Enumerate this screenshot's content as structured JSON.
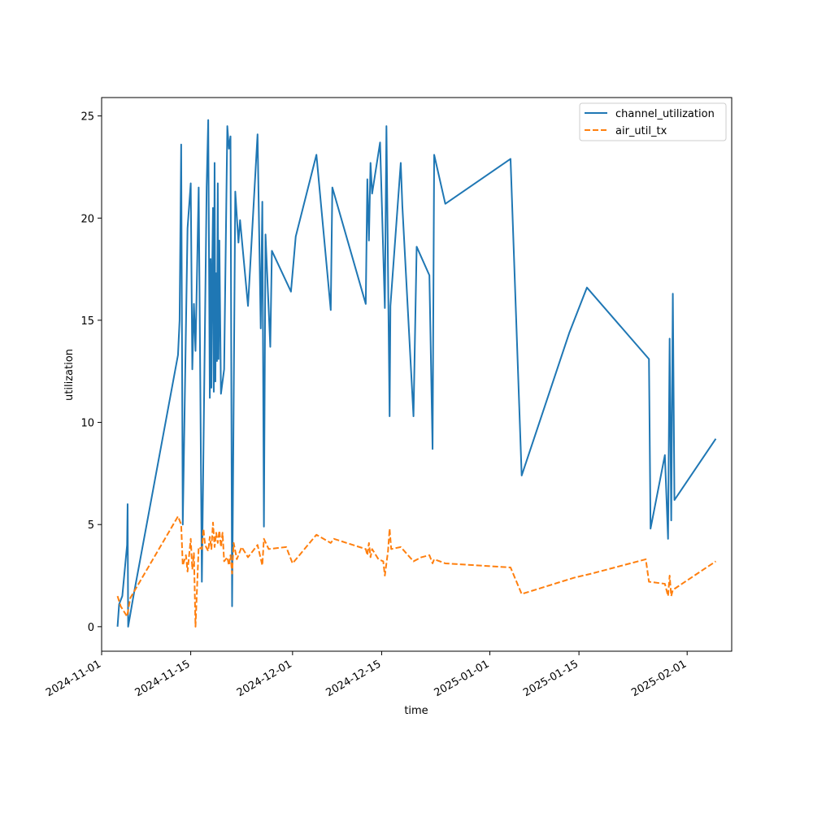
{
  "chart_data": {
    "type": "line",
    "xlabel": "time",
    "ylabel": "utilization",
    "ylim": [
      -1.2,
      25.9
    ],
    "xlim": [
      "2024-11-01",
      "2025-02-08"
    ],
    "x_ticks": [
      "2024-11-01",
      "2024-11-15",
      "2024-12-01",
      "2024-12-15",
      "2025-01-01",
      "2025-01-15",
      "2025-02-01"
    ],
    "y_ticks": [
      0,
      5,
      10,
      15,
      20,
      25
    ],
    "legend_position": "top-right",
    "grid": false,
    "series": [
      {
        "name": "channel_utilization",
        "color": "#1f77b4",
        "style": "solid",
        "points": [
          [
            "2024-11-03 12:00",
            0.0
          ],
          [
            "2024-11-03 18:00",
            1.1
          ],
          [
            "2024-11-04 06:00",
            1.5
          ],
          [
            "2024-11-05 00:00",
            4.0
          ],
          [
            "2024-11-05 02:00",
            6.0
          ],
          [
            "2024-11-05 04:00",
            0.0
          ],
          [
            "2024-11-06 00:00",
            1.5
          ],
          [
            "2024-11-13 00:00",
            13.3
          ],
          [
            "2024-11-13 06:00",
            15.0
          ],
          [
            "2024-11-13 12:00",
            23.6
          ],
          [
            "2024-11-13 18:00",
            5.0
          ],
          [
            "2024-11-14 12:00",
            19.5
          ],
          [
            "2024-11-15 00:00",
            21.7
          ],
          [
            "2024-11-15 06:00",
            12.6
          ],
          [
            "2024-11-15 12:00",
            15.8
          ],
          [
            "2024-11-15 18:00",
            13.5
          ],
          [
            "2024-11-16 06:00",
            21.5
          ],
          [
            "2024-11-16 12:00",
            12.0
          ],
          [
            "2024-11-16 18:00",
            2.2
          ],
          [
            "2024-11-17 12:00",
            21.5
          ],
          [
            "2024-11-17 18:00",
            24.8
          ],
          [
            "2024-11-18 00:00",
            11.2
          ],
          [
            "2024-11-18 03:00",
            18.0
          ],
          [
            "2024-11-18 06:00",
            11.7
          ],
          [
            "2024-11-18 09:00",
            17.5
          ],
          [
            "2024-11-18 12:00",
            20.5
          ],
          [
            "2024-11-18 15:00",
            11.5
          ],
          [
            "2024-11-18 18:00",
            22.7
          ],
          [
            "2024-11-18 21:00",
            12.0
          ],
          [
            "2024-11-19 00:00",
            17.3
          ],
          [
            "2024-11-19 03:00",
            13.0
          ],
          [
            "2024-11-19 06:00",
            21.7
          ],
          [
            "2024-11-19 09:00",
            13.1
          ],
          [
            "2024-11-19 12:00",
            18.9
          ],
          [
            "2024-11-19 18:00",
            11.4
          ],
          [
            "2024-11-20 06:00",
            12.6
          ],
          [
            "2024-11-20 18:00",
            24.5
          ],
          [
            "2024-11-21 00:00",
            23.4
          ],
          [
            "2024-11-21 06:00",
            24.0
          ],
          [
            "2024-11-21 12:00",
            1.0
          ],
          [
            "2024-11-22 00:00",
            21.3
          ],
          [
            "2024-11-22 12:00",
            18.8
          ],
          [
            "2024-11-22 18:00",
            19.9
          ],
          [
            "2024-11-24 00:00",
            15.7
          ],
          [
            "2024-11-25 12:00",
            24.1
          ],
          [
            "2024-11-26 00:00",
            14.6
          ],
          [
            "2024-11-26 06:00",
            20.8
          ],
          [
            "2024-11-26 12:00",
            4.9
          ],
          [
            "2024-11-26 18:00",
            19.2
          ],
          [
            "2024-11-27 12:00",
            13.7
          ],
          [
            "2024-11-27 18:00",
            18.4
          ],
          [
            "2024-11-30 18:00",
            16.4
          ],
          [
            "2024-12-01 12:00",
            19.1
          ],
          [
            "2024-12-04 18:00",
            23.1
          ],
          [
            "2024-12-07 00:00",
            15.5
          ],
          [
            "2024-12-07 06:00",
            21.5
          ],
          [
            "2024-12-12 12:00",
            15.8
          ],
          [
            "2024-12-12 18:00",
            21.9
          ],
          [
            "2024-12-13 00:00",
            18.9
          ],
          [
            "2024-12-13 06:00",
            22.7
          ],
          [
            "2024-12-13 12:00",
            21.2
          ],
          [
            "2024-12-14 18:00",
            23.7
          ],
          [
            "2024-12-15 12:00",
            15.6
          ],
          [
            "2024-12-15 18:00",
            24.5
          ],
          [
            "2024-12-16 06:00",
            10.3
          ],
          [
            "2024-12-16 09:00",
            15.7
          ],
          [
            "2024-12-18 00:00",
            22.7
          ],
          [
            "2024-12-18 06:00",
            20.6
          ],
          [
            "2024-12-20 00:00",
            10.3
          ],
          [
            "2024-12-20 12:00",
            18.6
          ],
          [
            "2024-12-22 12:00",
            17.2
          ],
          [
            "2024-12-23 00:00",
            8.7
          ],
          [
            "2024-12-23 06:00",
            23.1
          ],
          [
            "2024-12-25 00:00",
            20.7
          ],
          [
            "2025-01-04 06:00",
            22.9
          ],
          [
            "2025-01-06 00:00",
            7.4
          ],
          [
            "2025-01-13 12:00",
            14.4
          ],
          [
            "2025-01-16 06:00",
            16.6
          ],
          [
            "2025-01-26 00:00",
            13.1
          ],
          [
            "2025-01-26 06:00",
            4.8
          ],
          [
            "2025-01-28 12:00",
            8.4
          ],
          [
            "2025-01-29 00:00",
            4.3
          ],
          [
            "2025-01-29 06:00",
            14.1
          ],
          [
            "2025-01-29 12:00",
            5.2
          ],
          [
            "2025-01-29 18:00",
            16.3
          ],
          [
            "2025-01-30 00:00",
            6.2
          ],
          [
            "2025-02-05 12:00",
            9.2
          ]
        ]
      },
      {
        "name": "air_util_tx",
        "color": "#ff7f0e",
        "style": "dashed",
        "points": [
          [
            "2024-11-03 12:00",
            1.5
          ],
          [
            "2024-11-04 00:00",
            1.0
          ],
          [
            "2024-11-05 00:00",
            0.5
          ],
          [
            "2024-11-05 12:00",
            1.4
          ],
          [
            "2024-11-13 00:00",
            5.4
          ],
          [
            "2024-11-13 12:00",
            5.0
          ],
          [
            "2024-11-13 18:00",
            3.0
          ],
          [
            "2024-11-14 06:00",
            3.5
          ],
          [
            "2024-11-14 12:00",
            2.7
          ],
          [
            "2024-11-15 00:00",
            4.3
          ],
          [
            "2024-11-15 06:00",
            2.8
          ],
          [
            "2024-11-15 12:00",
            3.6
          ],
          [
            "2024-11-15 18:00",
            0.0
          ],
          [
            "2024-11-16 06:00",
            3.9
          ],
          [
            "2024-11-16 18:00",
            3.8
          ],
          [
            "2024-11-17 00:00",
            4.8
          ],
          [
            "2024-11-17 06:00",
            4.0
          ],
          [
            "2024-11-17 18:00",
            3.7
          ],
          [
            "2024-11-18 00:00",
            4.4
          ],
          [
            "2024-11-18 06:00",
            3.8
          ],
          [
            "2024-11-18 12:00",
            5.1
          ],
          [
            "2024-11-18 18:00",
            3.9
          ],
          [
            "2024-11-19 00:00",
            4.6
          ],
          [
            "2024-11-19 06:00",
            4.1
          ],
          [
            "2024-11-19 12:00",
            4.7
          ],
          [
            "2024-11-19 18:00",
            3.9
          ],
          [
            "2024-11-20 00:00",
            4.6
          ],
          [
            "2024-11-20 06:00",
            3.2
          ],
          [
            "2024-11-20 18:00",
            3.4
          ],
          [
            "2024-11-21 00:00",
            3.0
          ],
          [
            "2024-11-21 06:00",
            3.5
          ],
          [
            "2024-11-21 12:00",
            2.6
          ],
          [
            "2024-11-21 18:00",
            4.1
          ],
          [
            "2024-11-22 06:00",
            3.3
          ],
          [
            "2024-11-23 00:00",
            3.9
          ],
          [
            "2024-11-24 00:00",
            3.4
          ],
          [
            "2024-11-25 12:00",
            4.0
          ],
          [
            "2024-11-26 06:00",
            3.0
          ],
          [
            "2024-11-26 12:00",
            4.3
          ],
          [
            "2024-11-27 06:00",
            3.8
          ],
          [
            "2024-11-30 00:00",
            3.9
          ],
          [
            "2024-12-01 00:00",
            3.1
          ],
          [
            "2024-12-04 18:00",
            4.5
          ],
          [
            "2024-12-07 00:00",
            4.1
          ],
          [
            "2024-12-07 12:00",
            4.3
          ],
          [
            "2024-12-12 12:00",
            3.8
          ],
          [
            "2024-12-12 18:00",
            3.5
          ],
          [
            "2024-12-13 00:00",
            4.1
          ],
          [
            "2024-12-13 06:00",
            3.4
          ],
          [
            "2024-12-13 12:00",
            3.8
          ],
          [
            "2024-12-14 12:00",
            3.3
          ],
          [
            "2024-12-15 06:00",
            3.2
          ],
          [
            "2024-12-15 12:00",
            2.5
          ],
          [
            "2024-12-16 00:00",
            3.7
          ],
          [
            "2024-12-16 06:00",
            4.8
          ],
          [
            "2024-12-16 12:00",
            3.8
          ],
          [
            "2024-12-18 00:00",
            3.9
          ],
          [
            "2024-12-20 00:00",
            3.2
          ],
          [
            "2024-12-21 06:00",
            3.4
          ],
          [
            "2024-12-22 12:00",
            3.5
          ],
          [
            "2024-12-23 00:00",
            3.1
          ],
          [
            "2024-12-23 06:00",
            3.3
          ],
          [
            "2024-12-25 00:00",
            3.1
          ],
          [
            "2025-01-04 06:00",
            2.9
          ],
          [
            "2025-01-06 00:00",
            1.6
          ],
          [
            "2025-01-14 06:00",
            2.4
          ],
          [
            "2025-01-17 00:00",
            2.6
          ],
          [
            "2025-01-25 12:00",
            3.3
          ],
          [
            "2025-01-26 00:00",
            2.2
          ],
          [
            "2025-01-28 12:00",
            2.1
          ],
          [
            "2025-01-29 00:00",
            1.5
          ],
          [
            "2025-01-29 06:00",
            2.5
          ],
          [
            "2025-01-29 12:00",
            1.5
          ],
          [
            "2025-01-29 18:00",
            1.8
          ],
          [
            "2025-02-05 12:00",
            3.2
          ]
        ]
      }
    ]
  }
}
